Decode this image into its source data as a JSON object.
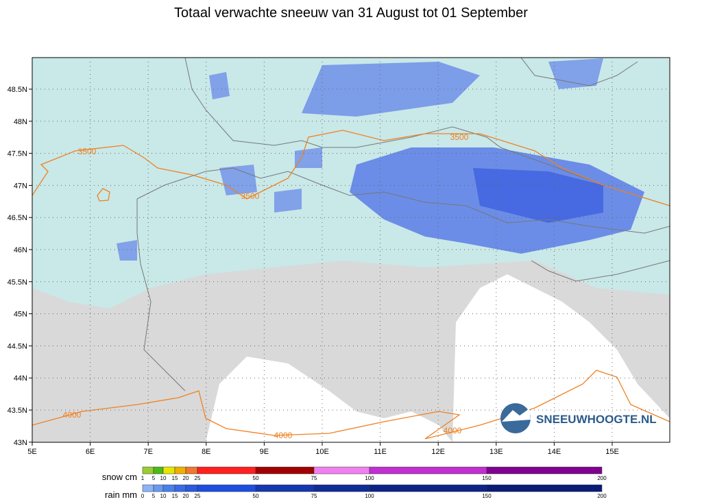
{
  "header": {
    "title": "Totaal verwachte sneeuw van 31 August tot 01 September"
  },
  "map": {
    "lon_labels": [
      "5E",
      "6E",
      "7E",
      "8E",
      "9E",
      "10E",
      "11E",
      "12E",
      "13E",
      "14E",
      "15E"
    ],
    "lat_labels": [
      "48.5N",
      "48N",
      "47.5N",
      "47N",
      "46.5N",
      "46N",
      "45.5N",
      "45N",
      "44.5N",
      "44N",
      "43.5N",
      "43N"
    ],
    "contour_labels": [
      "3500",
      "3500",
      "3500",
      "4000",
      "4000",
      "4000"
    ],
    "brand": "SNEEUWHOOGTE.NL"
  },
  "legend": {
    "snow_label": "snow cm",
    "snow_ticks": [
      "1",
      "5",
      "10",
      "15",
      "20",
      "25",
      "50",
      "75",
      "100",
      "150",
      "200"
    ],
    "rain_label": "rain mm",
    "rain_ticks": [
      "0",
      "5",
      "10",
      "15",
      "20",
      "25",
      "50",
      "75",
      "100",
      "150",
      "200"
    ]
  }
}
